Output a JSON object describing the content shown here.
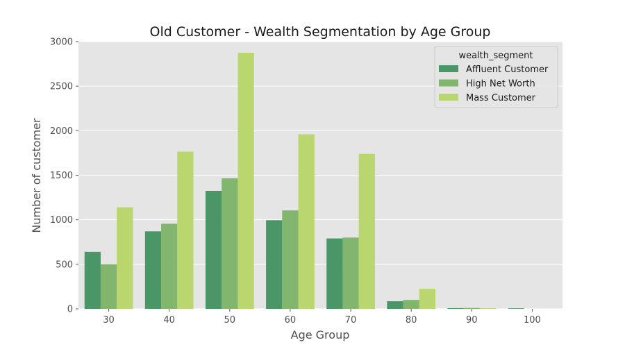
{
  "chart_data": {
    "type": "bar",
    "title": "Old Customer - Wealth Segmentation by Age Group",
    "xlabel": "Age Group",
    "ylabel": "Number of customer",
    "categories": [
      "30",
      "40",
      "50",
      "60",
      "70",
      "80",
      "90",
      "100"
    ],
    "ylim": [
      0,
      3000
    ],
    "yticks": [
      "0",
      "500",
      "1000",
      "1500",
      "2000",
      "2500",
      "3000"
    ],
    "grid": true,
    "legend_position": "top-right",
    "legend_title": "wealth_segment",
    "series": [
      {
        "name": "Affluent Customer",
        "color": "#4a9666",
        "values": [
          640,
          870,
          1325,
          995,
          790,
          85,
          8,
          6
        ]
      },
      {
        "name": "High Net Worth",
        "color": "#82b56e",
        "values": [
          500,
          955,
          1465,
          1105,
          800,
          100,
          10,
          0
        ]
      },
      {
        "name": "Mass Customer",
        "color": "#bad66f",
        "values": [
          1140,
          1765,
          2875,
          1960,
          1740,
          225,
          7,
          0
        ]
      }
    ],
    "plot_background": "#e5e5e5",
    "grid_color": "#ffffff"
  }
}
